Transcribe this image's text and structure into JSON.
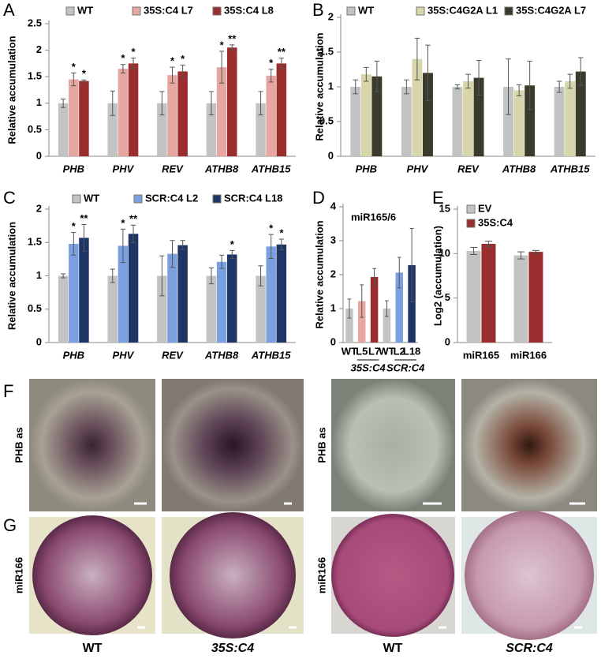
{
  "chart_data": [
    {
      "type": "bar",
      "panel_label": "A",
      "y_label": "Relative accumulation",
      "categories": [
        "PHB",
        "PHV",
        "REV",
        "ATHB8",
        "ATHB15"
      ],
      "ylim": [
        0,
        2.5
      ],
      "yticks": [
        0,
        0.5,
        1,
        1.5,
        2,
        2.5
      ],
      "series": [
        {
          "name": "WT",
          "color": "#c3c3c3",
          "values": [
            1.0,
            1.0,
            1.0,
            1.0,
            1.0
          ],
          "errors": [
            0.08,
            0.23,
            0.22,
            0.22,
            0.22
          ],
          "significance": [
            null,
            null,
            null,
            null,
            null
          ]
        },
        {
          "name": "35S:C4 L7",
          "color": "#e6a6a2",
          "values": [
            1.45,
            1.65,
            1.53,
            1.68,
            1.52
          ],
          "errors": [
            0.12,
            0.08,
            0.15,
            0.3,
            0.12
          ],
          "significance": [
            "*",
            "*",
            "*",
            "*",
            "*"
          ]
        },
        {
          "name": "35S:C4 L8",
          "color": "#9a2e2e",
          "values": [
            1.42,
            1.75,
            1.6,
            2.05,
            1.75
          ],
          "errors": [
            0.02,
            0.1,
            0.12,
            0.05,
            0.1
          ],
          "significance": [
            "*",
            "*",
            "*",
            "**",
            "**"
          ]
        }
      ]
    },
    {
      "type": "bar",
      "panel_label": "B",
      "y_label": "Relative accumulation",
      "categories": [
        "PHB",
        "PHV",
        "REV",
        "ATHB8",
        "ATHB15"
      ],
      "ylim": [
        0,
        2
      ],
      "yticks": [
        0,
        0.5,
        1,
        1.5,
        2
      ],
      "series": [
        {
          "name": "WT",
          "color": "#c3c3c3",
          "values": [
            1.0,
            1.0,
            1.0,
            1.0,
            1.0
          ],
          "errors": [
            0.1,
            0.1,
            0.03,
            0.4,
            0.08
          ],
          "significance": [
            null,
            null,
            null,
            null,
            null
          ]
        },
        {
          "name": "35S:C4G2A L1",
          "color": "#d6d6aa",
          "values": [
            1.18,
            1.4,
            1.08,
            0.95,
            1.08
          ],
          "errors": [
            0.1,
            0.3,
            0.1,
            0.08,
            0.1
          ],
          "significance": [
            null,
            null,
            null,
            null,
            null
          ]
        },
        {
          "name": "35S:C4G2A L7",
          "color": "#3b3b2b",
          "values": [
            1.15,
            1.2,
            1.13,
            1.02,
            1.22
          ],
          "errors": [
            0.22,
            0.4,
            0.25,
            0.35,
            0.2
          ],
          "significance": [
            null,
            null,
            null,
            null,
            null
          ]
        }
      ]
    },
    {
      "type": "bar",
      "panel_label": "C",
      "y_label": "Relative accumulation",
      "categories": [
        "PHB",
        "PHV",
        "REV",
        "ATHB8",
        "ATHB15"
      ],
      "ylim": [
        0,
        2
      ],
      "yticks": [
        0,
        0.5,
        1,
        1.5,
        2
      ],
      "series": [
        {
          "name": "WT",
          "color": "#c3c3c3",
          "values": [
            1.0,
            1.0,
            1.0,
            1.0,
            1.0
          ],
          "errors": [
            0.03,
            0.1,
            0.3,
            0.12,
            0.15
          ],
          "significance": [
            null,
            null,
            null,
            null,
            null
          ]
        },
        {
          "name": "SCR:C4 L2",
          "color": "#7ba0e0",
          "values": [
            1.48,
            1.45,
            1.33,
            1.21,
            1.44
          ],
          "errors": [
            0.17,
            0.25,
            0.2,
            0.1,
            0.18
          ],
          "significance": [
            "*",
            "*",
            null,
            null,
            "*"
          ]
        },
        {
          "name": "SCR:C4 L18",
          "color": "#1f3566",
          "values": [
            1.57,
            1.63,
            1.46,
            1.32,
            1.47
          ],
          "errors": [
            0.2,
            0.13,
            0.07,
            0.06,
            0.08
          ],
          "significance": [
            "**",
            "**",
            null,
            "*",
            "*"
          ]
        }
      ]
    },
    {
      "type": "bar",
      "panel_label": "D",
      "title": "miR165/6",
      "y_label": "Relative accumulation",
      "categories": [
        "WT",
        "L5",
        "L7",
        "WT",
        "L2",
        "L18"
      ],
      "values": [
        1.0,
        1.22,
        1.93,
        1.0,
        2.06,
        2.28
      ],
      "errors": [
        0.28,
        0.48,
        0.25,
        0.23,
        0.45,
        1.08
      ],
      "colors": [
        "#c3c3c3",
        "#e6a6a2",
        "#9a2e2e",
        "#c3c3c3",
        "#7ba0e0",
        "#1f3566"
      ],
      "groups": [
        {
          "label": "35S:C4",
          "from": 1,
          "to": 2
        },
        {
          "label": "SCR:C4",
          "from": 4,
          "to": 5
        }
      ],
      "ylim": [
        0,
        4
      ],
      "yticks": [
        0,
        1,
        2,
        3,
        4
      ]
    },
    {
      "type": "bar",
      "panel_label": "E",
      "y_label": "Log2 (accumulation)",
      "categories": [
        "miR165",
        "miR166"
      ],
      "ylim": [
        0,
        15
      ],
      "yticks": [
        0,
        5,
        10,
        15
      ],
      "series": [
        {
          "name": "EV",
          "color": "#c3c3c3",
          "values": [
            10.3,
            9.8
          ],
          "errors": [
            0.4,
            0.4
          ],
          "significance": [
            null,
            null
          ]
        },
        {
          "name": "35S:C4",
          "color": "#9a2e2e",
          "values": [
            11.1,
            10.2
          ],
          "errors": [
            0.3,
            0.15
          ],
          "significance": [
            null,
            null
          ]
        }
      ]
    }
  ],
  "images": {
    "panel_labels": [
      "F",
      "G"
    ],
    "row_labels": [
      "PHB as",
      "PHB as",
      "miR166",
      "miR166"
    ],
    "captions": [
      "WT",
      "35S:C4",
      "WT",
      "SCR:C4"
    ]
  }
}
